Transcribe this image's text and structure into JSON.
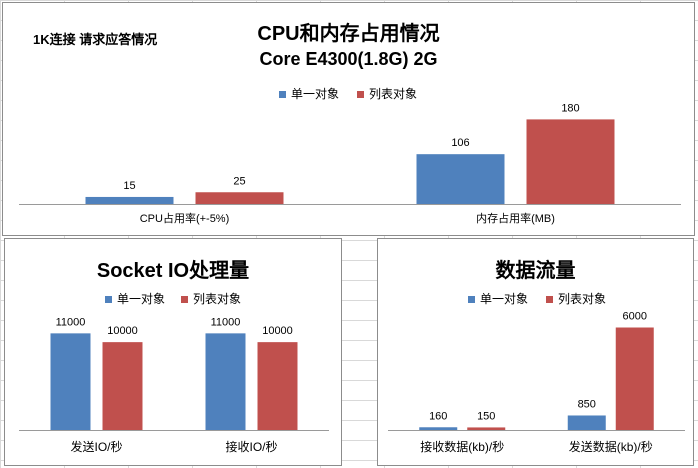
{
  "colors": {
    "series1": "#4f81bd",
    "series2": "#c0504d",
    "axis": "#9a9a9a",
    "text": "#000000"
  },
  "top_panel": {
    "note": "1K连接 请求应答情况",
    "title_line1": "CPU和内存占用情况",
    "title_line2": "Core E4300(1.8G) 2G"
  },
  "socket_panel": {
    "title": "Socket IO处理量"
  },
  "flow_panel": {
    "title": "数据流量"
  },
  "chart_data": [
    {
      "type": "bar",
      "title": "CPU和内存占用情况 Core E4300(1.8G) 2G",
      "legend_position": "top",
      "grid": false,
      "categories": [
        "CPU占用率(+-5%)",
        "内存占用率(MB)"
      ],
      "series": [
        {
          "name": "单一对象",
          "values": [
            15,
            106
          ]
        },
        {
          "name": "列表对象",
          "values": [
            25,
            180
          ]
        }
      ],
      "ylim": [
        0,
        200
      ]
    },
    {
      "type": "bar",
      "title": "Socket IO处理量",
      "legend_position": "top",
      "grid": false,
      "categories": [
        "发送IO/秒",
        "接收IO/秒"
      ],
      "series": [
        {
          "name": "单一对象",
          "values": [
            11000,
            11000
          ]
        },
        {
          "name": "列表对象",
          "values": [
            10000,
            10000
          ]
        }
      ],
      "ylim": [
        0,
        14000
      ]
    },
    {
      "type": "bar",
      "title": "数据流量",
      "legend_position": "top",
      "grid": false,
      "categories": [
        "接收数据(kb)/秒",
        "发送数据(kb)/秒"
      ],
      "series": [
        {
          "name": "单一对象",
          "values": [
            160,
            850
          ]
        },
        {
          "name": "列表对象",
          "values": [
            150,
            6000
          ]
        }
      ],
      "ylim": [
        0,
        7200
      ]
    }
  ]
}
